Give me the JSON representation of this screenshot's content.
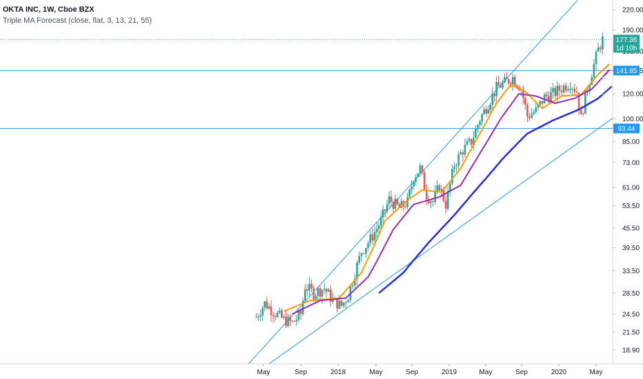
{
  "header": {
    "title": "OKTA INC, 1W, Cboe BZX",
    "indicator": "Triple MA Forecast (close, flat, 3, 13, 21, 55)"
  },
  "chart_data": {
    "type": "candlestick",
    "scale": "log",
    "grid": false,
    "price_axis": {
      "position": "right",
      "range": [
        17.0,
        235.0
      ],
      "tick_labels": [
        "220.00",
        "190.00",
        "163.00",
        "141.85",
        "120.00",
        "100.00",
        "85.00",
        "73.00",
        "61.00",
        "53.50",
        "45.50",
        "39.50",
        "33.50",
        "28.50",
        "24.50",
        "21.50",
        "18.90"
      ]
    },
    "time_axis": {
      "tick_labels": [
        "May",
        "Sep",
        "2018",
        "May",
        "Sep",
        "2019",
        "May",
        "Sep",
        "2020",
        "May"
      ],
      "tick_dates": [
        "2017-05",
        "2017-09",
        "2018-01",
        "2018-05",
        "2018-09",
        "2019-01",
        "2019-05",
        "2019-09",
        "2020-01",
        "2020-05"
      ]
    },
    "price_markers": [
      {
        "label": "177.36",
        "value": 177.36,
        "color": "#26a69a"
      },
      {
        "label": "1d 10h",
        "value": 167.0,
        "color": "#26a69a"
      },
      {
        "label": "141.85",
        "value": 141.85,
        "color": "#2196f3"
      },
      {
        "label": "93.44",
        "value": 93.44,
        "color": "#2196f3"
      }
    ],
    "horizontal_lines": [
      {
        "value": 141.85,
        "color": "#2196f3"
      },
      {
        "value": 93.44,
        "color": "#2196f3"
      },
      {
        "value": 177.36,
        "color": "#26a69a",
        "style": "dotted"
      }
    ],
    "trend_lines": [
      {
        "from": [
          "2017-03-10",
          17.0
        ],
        "to": [
          "2020-03-01",
          235.0
        ],
        "color": "#2196f3"
      },
      {
        "from": [
          "2017-05-15",
          17.0
        ],
        "to": [
          "2020-07-15",
          104.0
        ],
        "color": "#2196f3"
      }
    ],
    "weekly_closes_anchor": [
      [
        "2017-04-07",
        24.0
      ],
      [
        "2017-05-05",
        26.5
      ],
      [
        "2017-06-02",
        25.0
      ],
      [
        "2017-07-07",
        23.5
      ],
      [
        "2017-08-04",
        23.0
      ],
      [
        "2017-09-01",
        24.5
      ],
      [
        "2017-09-15",
        30.0
      ],
      [
        "2017-10-13",
        28.5
      ],
      [
        "2017-11-17",
        29.5
      ],
      [
        "2017-12-15",
        27.0
      ],
      [
        "2018-01-12",
        26.0
      ],
      [
        "2018-02-02",
        28.0
      ],
      [
        "2018-02-23",
        33.0
      ],
      [
        "2018-03-16",
        38.5
      ],
      [
        "2018-04-13",
        42.0
      ],
      [
        "2018-05-18",
        48.0
      ],
      [
        "2018-06-15",
        56.0
      ],
      [
        "2018-07-20",
        52.5
      ],
      [
        "2018-08-17",
        55.0
      ],
      [
        "2018-09-07",
        66.0
      ],
      [
        "2018-09-28",
        70.0
      ],
      [
        "2018-10-19",
        58.0
      ],
      [
        "2018-11-09",
        55.0
      ],
      [
        "2018-11-30",
        62.0
      ],
      [
        "2018-12-21",
        54.0
      ],
      [
        "2019-01-18",
        72.0
      ],
      [
        "2019-02-15",
        80.0
      ],
      [
        "2019-03-15",
        85.0
      ],
      [
        "2019-04-12",
        100.0
      ],
      [
        "2019-05-10",
        112.0
      ],
      [
        "2019-06-07",
        125.0
      ],
      [
        "2019-07-05",
        130.0
      ],
      [
        "2019-08-02",
        135.0
      ],
      [
        "2019-08-30",
        125.0
      ],
      [
        "2019-09-20",
        102.0
      ],
      [
        "2019-10-18",
        106.0
      ],
      [
        "2019-11-15",
        117.0
      ],
      [
        "2019-12-13",
        120.0
      ],
      [
        "2020-01-10",
        125.0
      ],
      [
        "2020-02-07",
        130.0
      ],
      [
        "2020-02-28",
        122.0
      ],
      [
        "2020-03-13",
        100.0
      ],
      [
        "2020-03-27",
        118.0
      ],
      [
        "2020-04-17",
        140.0
      ],
      [
        "2020-05-08",
        165.0
      ],
      [
        "2020-05-22",
        177.36
      ]
    ],
    "moving_averages": [
      {
        "length": 3,
        "color": "#c2185b",
        "style": "dotted"
      },
      {
        "length": 13,
        "color": "#ff9800",
        "anchor": [
          [
            "2017-07-07",
            25.0
          ],
          [
            "2017-10-01",
            27.0
          ],
          [
            "2018-01-05",
            27.5
          ],
          [
            "2018-03-16",
            33.0
          ],
          [
            "2018-06-01",
            48.0
          ],
          [
            "2018-08-10",
            55.0
          ],
          [
            "2018-10-05",
            60.0
          ],
          [
            "2018-12-07",
            59.0
          ],
          [
            "2019-02-08",
            70.0
          ],
          [
            "2019-04-12",
            90.0
          ],
          [
            "2019-06-07",
            112.0
          ],
          [
            "2019-07-26",
            128.0
          ],
          [
            "2019-09-13",
            122.0
          ],
          [
            "2019-11-08",
            108.0
          ],
          [
            "2020-01-10",
            118.0
          ],
          [
            "2020-03-13",
            119.0
          ],
          [
            "2020-05-08",
            138.0
          ],
          [
            "2020-06-12",
            148.0
          ]
        ]
      },
      {
        "length": 21,
        "color": "#9c27b0",
        "anchor": [
          [
            "2017-08-04",
            24.5
          ],
          [
            "2017-11-03",
            27.0
          ],
          [
            "2018-01-26",
            27.5
          ],
          [
            "2018-04-06",
            32.0
          ],
          [
            "2018-06-29",
            45.0
          ],
          [
            "2018-09-07",
            54.0
          ],
          [
            "2018-11-30",
            57.0
          ],
          [
            "2019-02-08",
            62.0
          ],
          [
            "2019-04-12",
            78.0
          ],
          [
            "2019-06-21",
            100.0
          ],
          [
            "2019-08-23",
            120.0
          ],
          [
            "2019-10-18",
            118.0
          ],
          [
            "2019-12-20",
            112.0
          ],
          [
            "2020-02-21",
            116.0
          ],
          [
            "2020-04-17",
            124.0
          ],
          [
            "2020-06-12",
            142.0
          ]
        ]
      },
      {
        "length": 55,
        "color": "#2a32d8",
        "anchor": [
          [
            "2018-05-11",
            28.5
          ],
          [
            "2018-08-03",
            33.0
          ],
          [
            "2018-10-26",
            41.0
          ],
          [
            "2019-01-18",
            50.0
          ],
          [
            "2019-04-12",
            62.0
          ],
          [
            "2019-06-28",
            75.0
          ],
          [
            "2019-09-20",
            90.0
          ],
          [
            "2019-12-13",
            99.0
          ],
          [
            "2020-03-06",
            107.0
          ],
          [
            "2020-05-08",
            116.0
          ],
          [
            "2020-06-19",
            126.0
          ]
        ]
      }
    ]
  }
}
